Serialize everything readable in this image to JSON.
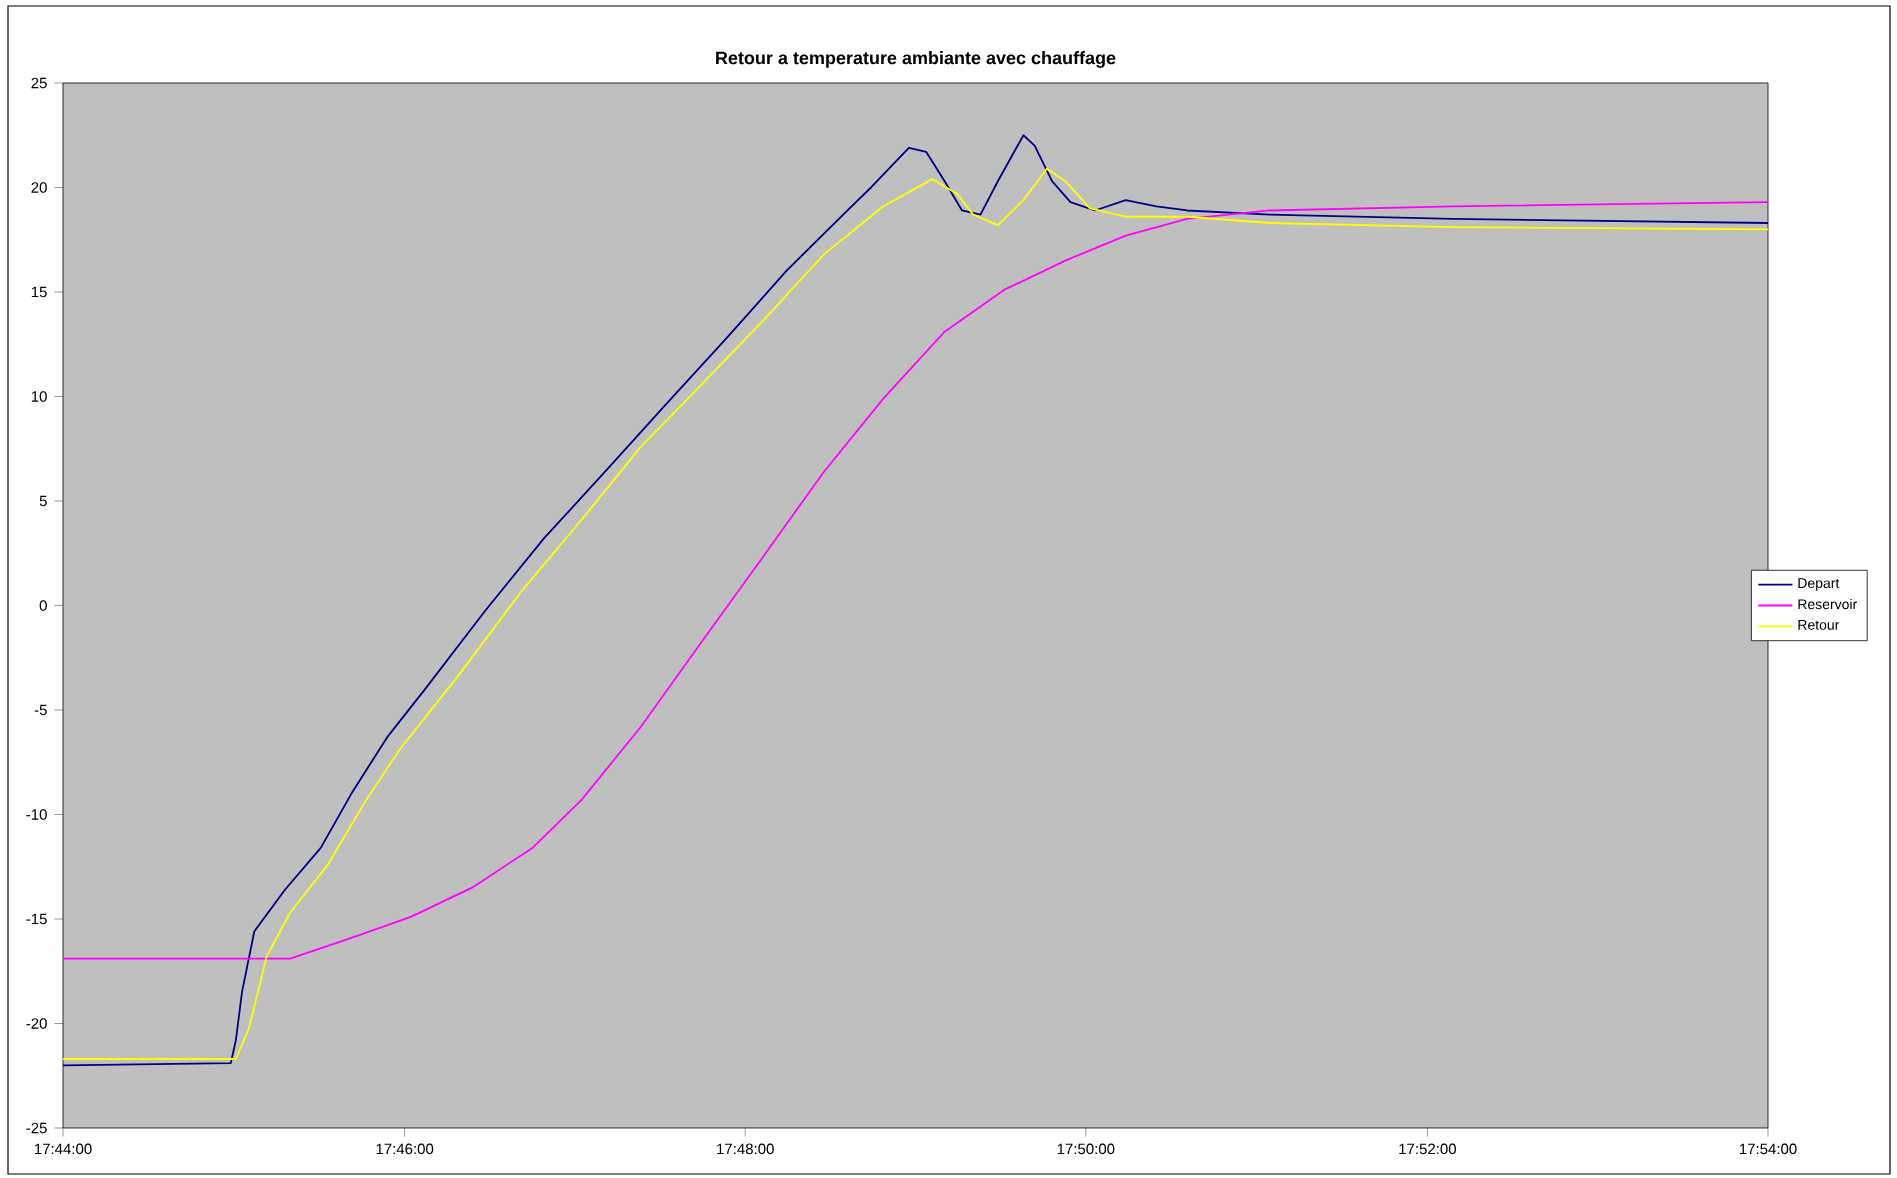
{
  "chart_data": {
    "type": "line",
    "title": "Retour a temperature ambiante avec chauffage",
    "xlim": [
      17.7333,
      17.9
    ],
    "ylim": [
      -25,
      25
    ],
    "xticks": [
      {
        "value": 17.7333,
        "label": "17:44:00"
      },
      {
        "value": 17.7667,
        "label": "17:46:00"
      },
      {
        "value": 17.8,
        "label": "17:48:00"
      },
      {
        "value": 17.8333,
        "label": "17:50:00"
      },
      {
        "value": 17.8667,
        "label": "17:52:00"
      },
      {
        "value": 17.9,
        "label": "17:54:00"
      }
    ],
    "yticks": [
      -25,
      -20,
      -15,
      -10,
      -5,
      0,
      5,
      10,
      15,
      20,
      25
    ],
    "legend": "right",
    "grid": false,
    "marker": "none",
    "line_style": "solid",
    "series": [
      {
        "name": "Depart",
        "color": "#000080",
        "x": [
          17.7333,
          17.7497,
          17.7502,
          17.7508,
          17.752,
          17.755,
          17.7585,
          17.7615,
          17.765,
          17.7687,
          17.7745,
          17.7803,
          17.7863,
          17.7922,
          17.7982,
          17.804,
          17.81,
          17.8123,
          17.816,
          17.8177,
          17.8195,
          17.8212,
          17.823,
          17.8247,
          17.8272,
          17.8283,
          17.83,
          17.8318,
          17.8342,
          17.8372,
          17.8402,
          17.8432,
          17.8513,
          17.8692,
          17.9
        ],
        "values": [
          -22.0,
          -21.9,
          -20.8,
          -18.5,
          -15.6,
          -13.6,
          -11.6,
          -9.0,
          -6.3,
          -4.0,
          -0.3,
          3.2,
          6.4,
          9.6,
          12.8,
          16.0,
          18.9,
          20.0,
          21.9,
          21.7,
          20.3,
          18.9,
          18.7,
          20.3,
          22.5,
          22.0,
          20.3,
          19.3,
          18.9,
          19.4,
          19.1,
          18.9,
          18.7,
          18.5,
          18.3
        ]
      },
      {
        "name": "Reservoir",
        "color": "#ff00ff",
        "x": [
          17.7333,
          17.7508,
          17.7555,
          17.7615,
          17.7673,
          17.7733,
          17.7792,
          17.784,
          17.7898,
          17.7958,
          17.8017,
          17.8077,
          17.8135,
          17.8195,
          17.8253,
          17.8313,
          17.8372,
          17.8432,
          17.8513,
          17.8692,
          17.9
        ],
        "values": [
          -16.9,
          -16.9,
          -16.9,
          -15.9,
          -14.9,
          -13.5,
          -11.6,
          -9.3,
          -5.8,
          -1.7,
          2.3,
          6.4,
          9.9,
          13.1,
          15.1,
          16.5,
          17.7,
          18.5,
          18.9,
          19.1,
          19.3
        ]
      },
      {
        "name": "Retour",
        "color": "#ffff00",
        "x": [
          17.7333,
          17.7502,
          17.7515,
          17.7532,
          17.7555,
          17.7592,
          17.7627,
          17.7662,
          17.7722,
          17.778,
          17.784,
          17.7898,
          17.7958,
          17.8017,
          17.8077,
          17.8135,
          17.8183,
          17.8207,
          17.8223,
          17.8247,
          17.8272,
          17.8295,
          17.8313,
          17.8337,
          17.8372,
          17.8432,
          17.8513,
          17.8692,
          17.9
        ],
        "values": [
          -21.7,
          -21.7,
          -20.2,
          -16.8,
          -14.7,
          -12.4,
          -9.5,
          -6.9,
          -3.2,
          0.6,
          4.1,
          7.6,
          10.6,
          13.6,
          16.8,
          19.1,
          20.4,
          19.7,
          18.7,
          18.2,
          19.4,
          20.9,
          20.3,
          19.0,
          18.6,
          18.6,
          18.3,
          18.1,
          18.0
        ]
      }
    ]
  }
}
